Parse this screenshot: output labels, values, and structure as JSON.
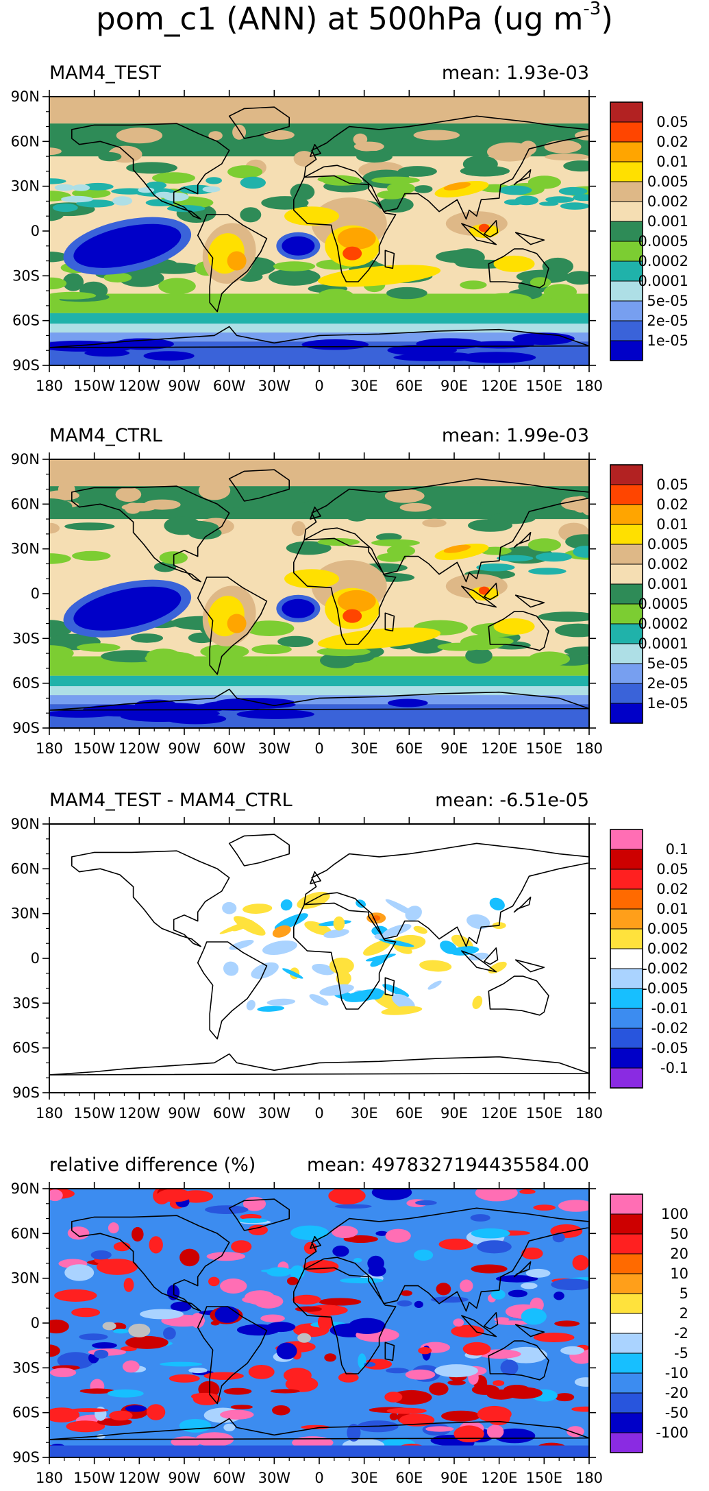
{
  "title": {
    "main": "pom_c1 (ANN) at 500hPa (ug m",
    "exponent": "-3",
    "close": ")"
  },
  "axes": {
    "lat_ticks": [
      "90N",
      "60N",
      "30N",
      "0",
      "30S",
      "60S",
      "90S"
    ],
    "lon_ticks": [
      "180",
      "150W",
      "120W",
      "90W",
      "60W",
      "30W",
      "0",
      "30E",
      "60E",
      "90E",
      "120E",
      "150E",
      "180"
    ]
  },
  "panels": [
    {
      "left_label": "MAM4_TEST",
      "right_label": "mean: 1.93e-03",
      "field": "mean",
      "colorbar": {
        "colors": [
          "#b22222",
          "#ff4500",
          "#ffa500",
          "#ffe000",
          "#deb887",
          "#f5deb3",
          "#2e8b57",
          "#7ccd32",
          "#20b2aa",
          "#aedfe6",
          "#779ff0",
          "#3a63d9",
          "#0000c8"
        ],
        "labels": [
          "0.05",
          "0.02",
          "0.01",
          "0.005",
          "0.002",
          "0.001",
          "0.0005",
          "0.0002",
          "0.0001",
          "5e-05",
          "2e-05",
          "1e-05"
        ]
      }
    },
    {
      "left_label": "MAM4_CTRL",
      "right_label": "mean: 1.99e-03",
      "field": "mean",
      "colorbar": {
        "colors": [
          "#b22222",
          "#ff4500",
          "#ffa500",
          "#ffe000",
          "#deb887",
          "#f5deb3",
          "#2e8b57",
          "#7ccd32",
          "#20b2aa",
          "#aedfe6",
          "#779ff0",
          "#3a63d9",
          "#0000c8"
        ],
        "labels": [
          "0.05",
          "0.02",
          "0.01",
          "0.005",
          "0.002",
          "0.001",
          "0.0005",
          "0.0002",
          "0.0001",
          "5e-05",
          "2e-05",
          "1e-05"
        ]
      }
    },
    {
      "left_label": "MAM4_TEST - MAM4_CTRL",
      "right_label": "mean: -6.51e-05",
      "field": "diff",
      "colorbar": {
        "colors": [
          "#ff6eb4",
          "#cd0000",
          "#ff2020",
          "#ff6a00",
          "#ff9f1a",
          "#ffe23c",
          "#ffffff",
          "#aad3ff",
          "#17bfff",
          "#3c8cf0",
          "#2855dd",
          "#0000c8",
          "#8a2be2"
        ],
        "labels": [
          "0.1",
          "0.05",
          "0.02",
          "0.01",
          "0.005",
          "0.002",
          "-0.002",
          "-0.005",
          "-0.01",
          "-0.02",
          "-0.05",
          "-0.1"
        ]
      }
    },
    {
      "left_label": "relative difference (%)",
      "right_label": "mean: 4978327194435584.00",
      "field": "rel",
      "colorbar": {
        "colors": [
          "#ff6eb4",
          "#cd0000",
          "#ff2020",
          "#ff6a00",
          "#ff9f1a",
          "#ffe23c",
          "#ffffff",
          "#aad3ff",
          "#17bfff",
          "#3c8cf0",
          "#2855dd",
          "#0000c8",
          "#8a2be2"
        ],
        "labels": [
          "100",
          "50",
          "20",
          "10",
          "5",
          "2",
          "-2",
          "-5",
          "-10",
          "-20",
          "-50",
          "-100"
        ]
      }
    }
  ]
}
